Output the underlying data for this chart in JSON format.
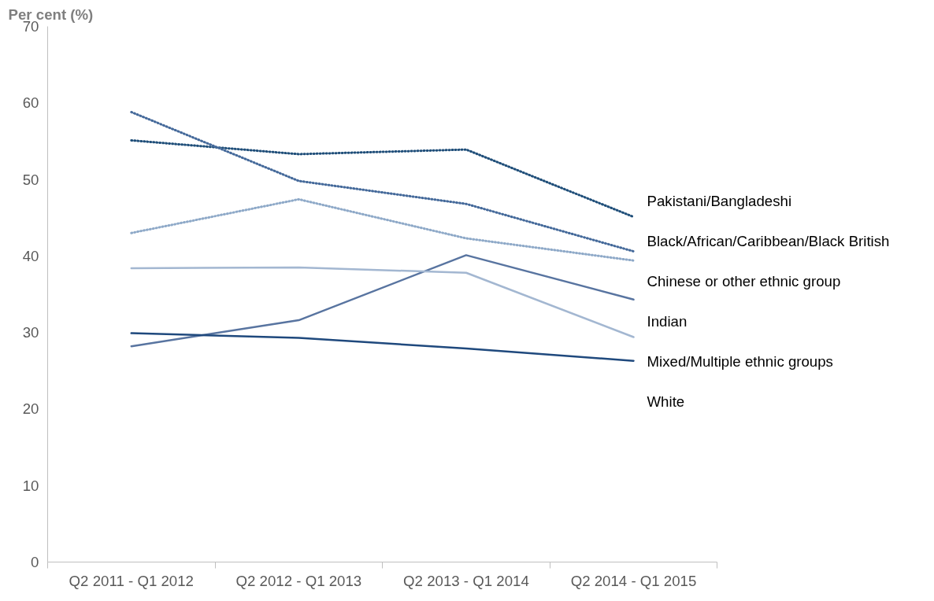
{
  "chart_data": {
    "type": "line",
    "ylabel": "Per cent (%)",
    "categories": [
      "Q2 2011 - Q1 2012",
      "Q2 2012 - Q1 2013",
      "Q2 2013 - Q1 2014",
      "Q2 2014 - Q1 2015"
    ],
    "ylim": [
      0,
      70
    ],
    "yticks": [
      0,
      10,
      20,
      30,
      40,
      50,
      60,
      70
    ],
    "grid": false,
    "series": [
      {
        "name": "Pakistani/Bangladeshi",
        "color": "#1f4e79",
        "line_style": "dotted",
        "values": [
          55.1,
          53.3,
          53.9,
          45.1
        ]
      },
      {
        "name": "Black/African/Caribbean/Black British",
        "color": "#44699a",
        "line_style": "dotted",
        "values": [
          58.8,
          49.8,
          46.8,
          40.6
        ]
      },
      {
        "name": "Chinese or other ethnic group",
        "color": "#8ea9c8",
        "line_style": "dotted",
        "values": [
          43.0,
          47.4,
          42.3,
          39.4
        ]
      },
      {
        "name": "Indian",
        "color": "#5874a0",
        "line_style": "solid",
        "values": [
          28.2,
          31.6,
          40.1,
          34.3
        ]
      },
      {
        "name": "Mixed/Multiple ethnic groups",
        "color": "#a3b7d1",
        "line_style": "solid",
        "values": [
          38.4,
          38.5,
          37.8,
          29.4
        ]
      },
      {
        "name": "White",
        "color": "#1f497d",
        "line_style": "solid",
        "values": [
          29.9,
          29.3,
          27.9,
          26.3
        ]
      }
    ]
  }
}
